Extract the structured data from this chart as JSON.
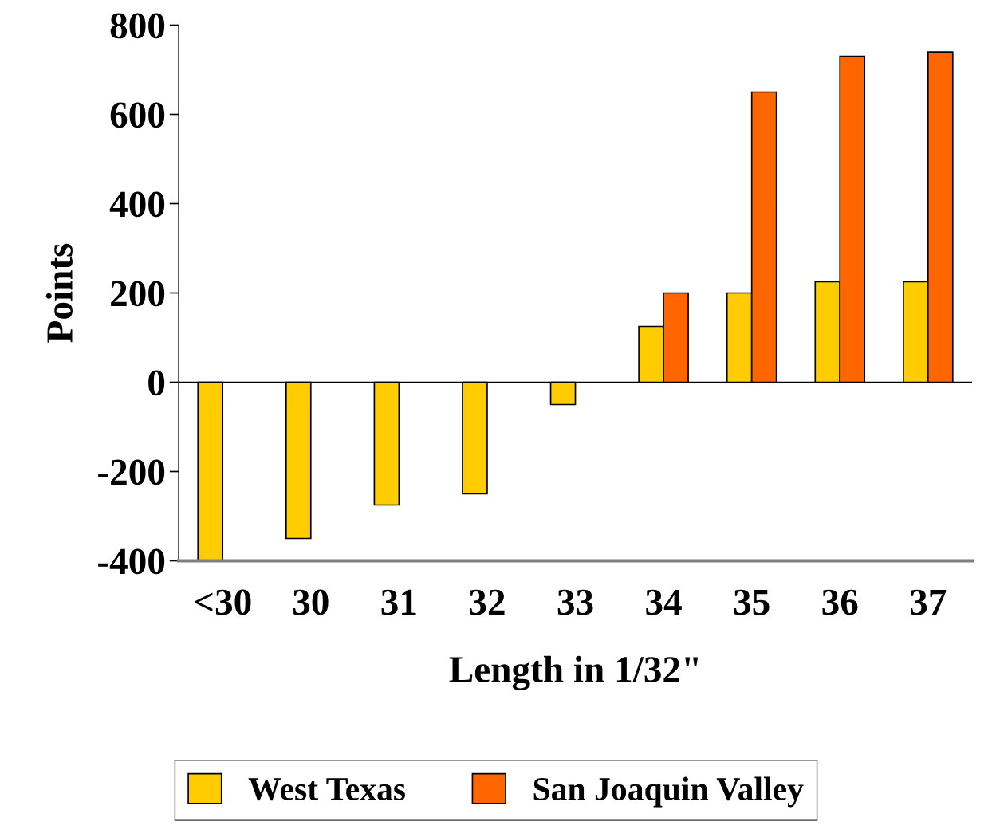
{
  "chart_data": {
    "type": "bar",
    "xlabel": "Length in 1/32\"",
    "ylabel": "Points",
    "categories": [
      "<30",
      "30",
      "31",
      "32",
      "33",
      "34",
      "35",
      "36",
      "37"
    ],
    "series": [
      {
        "name": "West Texas",
        "color": "#ffcc00",
        "values": [
          -400,
          -350,
          -275,
          -250,
          -50,
          125,
          200,
          225,
          225
        ]
      },
      {
        "name": "San Joaquin Valley",
        "color": "#ff6600",
        "values": [
          null,
          null,
          null,
          null,
          null,
          200,
          650,
          730,
          740
        ]
      }
    ],
    "ylim": [
      -400,
      800
    ],
    "yticks": [
      -400,
      -200,
      0,
      200,
      400,
      600,
      800
    ],
    "ref_lines": [
      {
        "axis": "y",
        "value": 0,
        "color": "#000000"
      }
    ],
    "grid": false,
    "legend": "bottom"
  }
}
